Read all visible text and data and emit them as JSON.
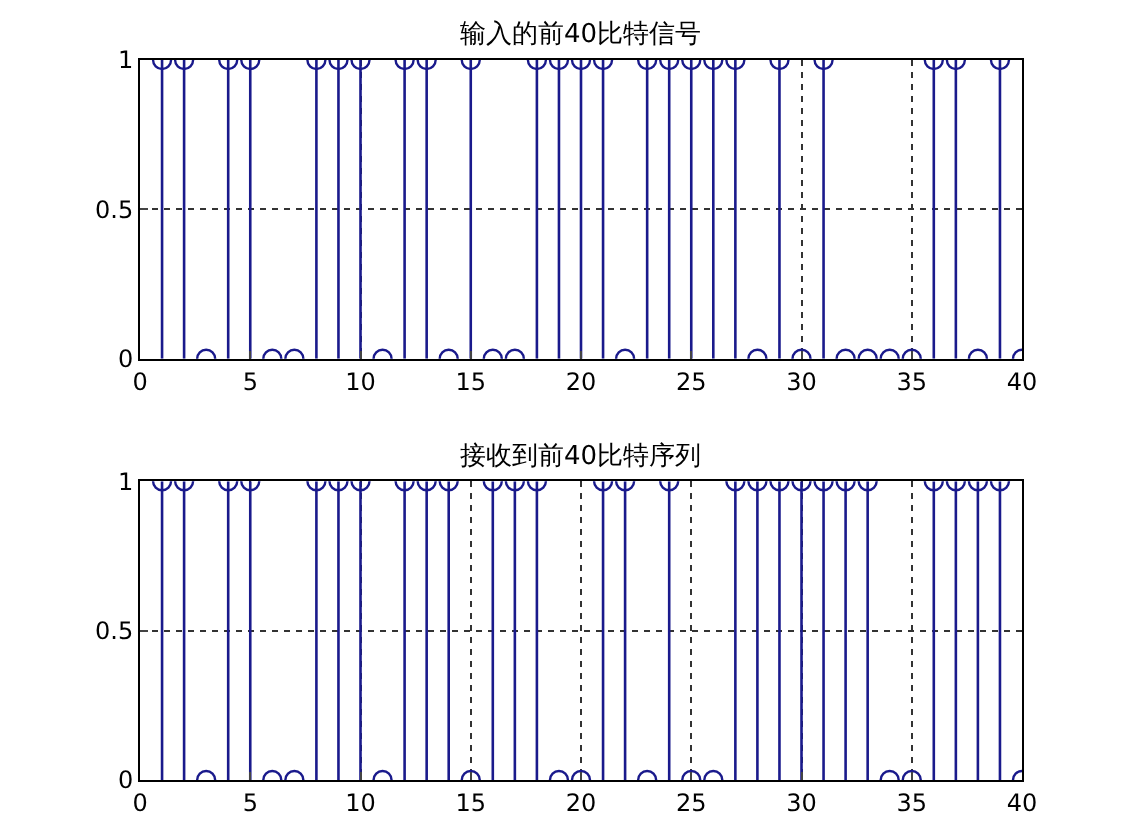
{
  "chart_data": [
    {
      "type": "lollipop",
      "title": "输入的前40比特信号",
      "x": [
        1,
        2,
        3,
        4,
        5,
        6,
        7,
        8,
        9,
        10,
        11,
        12,
        13,
        14,
        15,
        16,
        17,
        18,
        19,
        20,
        21,
        22,
        23,
        24,
        25,
        26,
        27,
        28,
        29,
        30,
        31,
        32,
        33,
        34,
        35,
        36,
        37,
        38,
        39,
        40
      ],
      "values": [
        1,
        1,
        0,
        1,
        1,
        0,
        0,
        1,
        1,
        1,
        0,
        1,
        1,
        0,
        1,
        0,
        0,
        1,
        1,
        1,
        1,
        0,
        1,
        1,
        1,
        1,
        1,
        0,
        1,
        0,
        1,
        0,
        0,
        0,
        0,
        1,
        1,
        0,
        1,
        0
      ],
      "color": "#1a1a8c",
      "marker": "circle",
      "xlim": [
        0,
        40
      ],
      "xticks": [
        0,
        5,
        10,
        15,
        20,
        25,
        30,
        35,
        40
      ],
      "ylim": [
        0,
        1
      ],
      "yticks": [
        0,
        0.5,
        1
      ],
      "grid": true
    },
    {
      "type": "lollipop",
      "title": "接收到前40比特序列",
      "x": [
        1,
        2,
        3,
        4,
        5,
        6,
        7,
        8,
        9,
        10,
        11,
        12,
        13,
        14,
        15,
        16,
        17,
        18,
        19,
        20,
        21,
        22,
        23,
        24,
        25,
        26,
        27,
        28,
        29,
        30,
        31,
        32,
        33,
        34,
        35,
        36,
        37,
        38,
        39,
        40
      ],
      "values": [
        1,
        1,
        0,
        1,
        1,
        0,
        0,
        1,
        1,
        1,
        0,
        1,
        1,
        1,
        0,
        1,
        1,
        1,
        0,
        0,
        1,
        1,
        0,
        1,
        0,
        0,
        1,
        1,
        1,
        1,
        1,
        1,
        1,
        0,
        0,
        1,
        1,
        1,
        1,
        0
      ],
      "color": "#1a1a8c",
      "marker": "circle",
      "xlim": [
        0,
        40
      ],
      "xticks": [
        0,
        5,
        10,
        15,
        20,
        25,
        30,
        35,
        40
      ],
      "ylim": [
        0,
        1
      ],
      "yticks": [
        0,
        0.5,
        1
      ],
      "grid": true
    }
  ]
}
